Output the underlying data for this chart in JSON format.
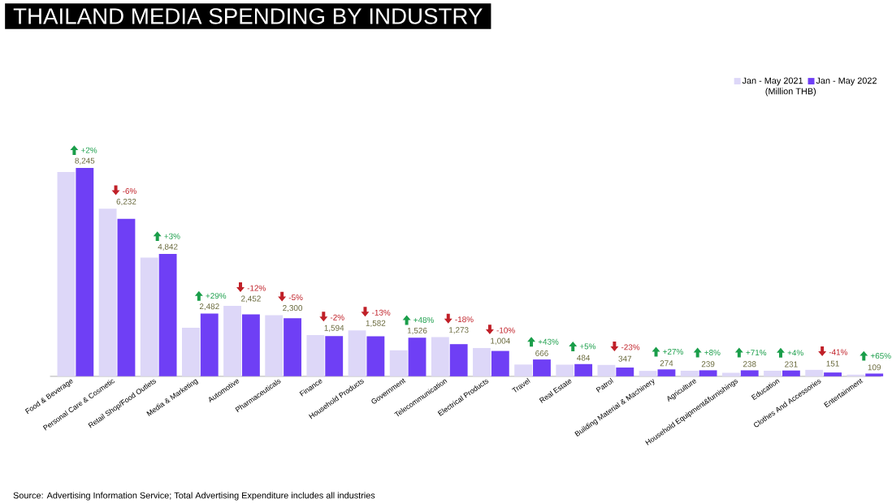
{
  "chart_data": {
    "type": "bar",
    "title": "THAILAND MEDIA SPENDING BY INDUSTRY",
    "categories": [
      "Food & Beverage",
      "Personal Care & Cosmetic",
      "Retail Shop/Food Outlets",
      "Media & Marketing",
      "Automotive",
      "Pharmaceuticals",
      "Finance",
      "Household Products",
      "Government",
      "Telecommunication",
      "Electrical Products",
      "Travel",
      "Real Estate",
      "Patrol",
      "Building Material & Machinery",
      "Agriculture",
      "Household Equipment&furnishings",
      "Education",
      "Clothes And Accessories",
      "Entertainment"
    ],
    "series": [
      {
        "name": "Jan - May 2021",
        "color": "#ddd7f8",
        "values": [
          8080,
          6630,
          4700,
          1920,
          2790,
          2420,
          1630,
          1820,
          1030,
          1550,
          1120,
          466,
          461,
          451,
          216,
          221,
          139,
          222,
          256,
          66
        ]
      },
      {
        "name": "Jan - May 2022",
        "color": "#6f3ff5",
        "values": [
          8245,
          6232,
          4842,
          2482,
          2452,
          2300,
          1594,
          1582,
          1526,
          1273,
          1004,
          666,
          484,
          347,
          274,
          239,
          238,
          231,
          151,
          109
        ],
        "value_labels": [
          "8,245",
          "6,232",
          "4,842",
          "2,482",
          "2,452",
          "2,300",
          "1,594",
          "1,582",
          "1,526",
          "1,273",
          "1,004",
          "666",
          "484",
          "347",
          "274",
          "239",
          "238",
          "231",
          "151",
          "109"
        ]
      }
    ],
    "legend_title": "(Million THB)",
    "legend": "top right",
    "annotations": [
      "+2%",
      "-6%",
      "+3%",
      "+29%",
      "-12%",
      "-5%",
      "-2%",
      "-13%",
      "+48%",
      "-18%",
      "-10%",
      "+43%",
      "+5%",
      "-23%",
      "+27%",
      "+8%",
      "+71%",
      "+4%",
      "-41%",
      "+65%",
      "Source: Advertising Information Service; Total Advertising Expenditure includes all industries"
    ]
  }
}
